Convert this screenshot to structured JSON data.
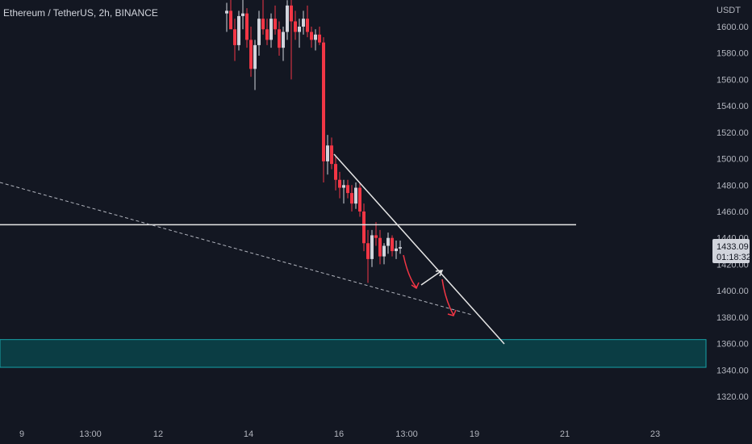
{
  "header": {
    "symbol": "Ethereum / TetherUS, 2h, BINANCE"
  },
  "colors": {
    "background": "#131722",
    "up_candle": "#d1d4dc",
    "down_candle": "#f23645",
    "zone": "#0b3d44",
    "zone_border": "#17a2a8",
    "line": "#e6e6e6"
  },
  "chart_data": {
    "type": "candlestick",
    "currency_label": "USDT",
    "y_ticks": [
      "1600.00",
      "1580.00",
      "1560.00",
      "1540.00",
      "1520.00",
      "1500.00",
      "1480.00",
      "1460.00",
      "1440.00",
      "1420.00",
      "1400.00",
      "1380.00",
      "1360.00",
      "1340.00",
      "1320.00"
    ],
    "x_ticks": [
      "9",
      "13:00",
      "12",
      "14",
      "16",
      "13:00",
      "19",
      "21",
      "23"
    ],
    "ylim": [
      1312,
      1612
    ],
    "last_price": "1433.09",
    "countdown": "01:18:32",
    "support_zone": [
      1342,
      1363
    ],
    "horizontal_level": 1450,
    "candles": [
      [
        1610,
        1618,
        1596,
        1612
      ],
      [
        1612,
        1624,
        1600,
        1598
      ],
      [
        1598,
        1606,
        1574,
        1586
      ],
      [
        1586,
        1612,
        1582,
        1608
      ],
      [
        1608,
        1622,
        1598,
        1610
      ],
      [
        1610,
        1614,
        1584,
        1590
      ],
      [
        1590,
        1600,
        1562,
        1568
      ],
      [
        1568,
        1590,
        1552,
        1586
      ],
      [
        1586,
        1612,
        1578,
        1606
      ],
      [
        1606,
        1624,
        1594,
        1598
      ],
      [
        1598,
        1606,
        1586,
        1590
      ],
      [
        1590,
        1610,
        1584,
        1606
      ],
      [
        1606,
        1616,
        1594,
        1598
      ],
      [
        1598,
        1604,
        1578,
        1584
      ],
      [
        1584,
        1600,
        1574,
        1596
      ],
      [
        1596,
        1620,
        1590,
        1616
      ],
      [
        1616,
        1622,
        1560,
        1604
      ],
      [
        1604,
        1612,
        1590,
        1596
      ],
      [
        1596,
        1606,
        1584,
        1600
      ],
      [
        1600,
        1612,
        1594,
        1606
      ],
      [
        1606,
        1616,
        1592,
        1596
      ],
      [
        1596,
        1600,
        1584,
        1590
      ],
      [
        1590,
        1598,
        1582,
        1594
      ],
      [
        1594,
        1600,
        1586,
        1588
      ],
      [
        1588,
        1592,
        1482,
        1498
      ],
      [
        1498,
        1518,
        1488,
        1510
      ],
      [
        1510,
        1516,
        1492,
        1496
      ],
      [
        1496,
        1502,
        1476,
        1484
      ],
      [
        1484,
        1490,
        1470,
        1478
      ],
      [
        1478,
        1484,
        1466,
        1480
      ],
      [
        1480,
        1484,
        1470,
        1474
      ],
      [
        1474,
        1480,
        1460,
        1466
      ],
      [
        1466,
        1482,
        1462,
        1478
      ],
      [
        1478,
        1482,
        1456,
        1460
      ],
      [
        1460,
        1466,
        1430,
        1436
      ],
      [
        1436,
        1446,
        1406,
        1424
      ],
      [
        1424,
        1446,
        1418,
        1442
      ],
      [
        1442,
        1452,
        1434,
        1440
      ],
      [
        1440,
        1446,
        1420,
        1426
      ],
      [
        1426,
        1436,
        1420,
        1434
      ],
      [
        1434,
        1444,
        1428,
        1440
      ],
      [
        1440,
        1442,
        1426,
        1430
      ],
      [
        1430,
        1438,
        1424,
        1432
      ],
      [
        1432,
        1438,
        1428,
        1433
      ]
    ],
    "annotations": {
      "downtrend_line": [
        [
          1496,
          1360
        ]
      ],
      "lower_dashed_line": [
        [
          1472,
          1383
        ]
      ]
    }
  }
}
